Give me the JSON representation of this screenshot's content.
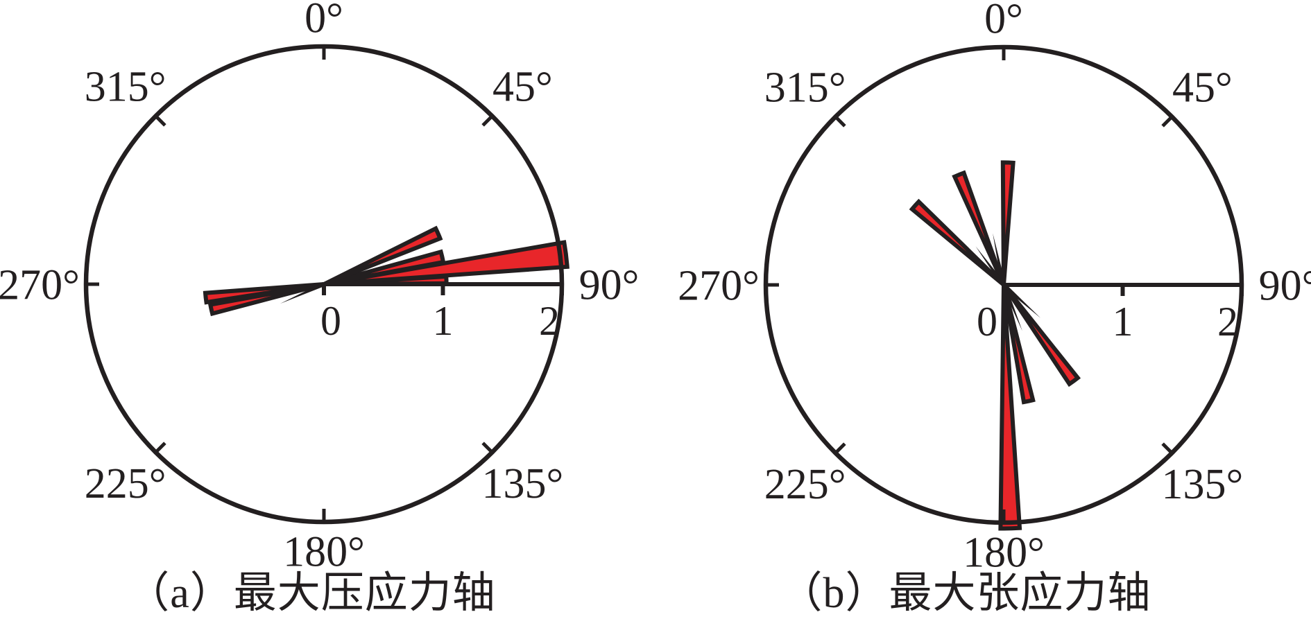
{
  "colors": {
    "petal_fill": "#e8262a",
    "line": "#231f20",
    "text": "#231f20",
    "background": "#ffffff"
  },
  "chart_data": [
    {
      "type": "rose",
      "caption": "（a）最大压应力轴",
      "orientation": "0-deg-up-clockwise",
      "rlim": [
        0,
        2
      ],
      "grid": "outer-circle-with-45deg-ticks",
      "angle_ticks": [
        {
          "angle_deg": 0,
          "label": "0°"
        },
        {
          "angle_deg": 45,
          "label": "45°"
        },
        {
          "angle_deg": 90,
          "label": "90°"
        },
        {
          "angle_deg": 135,
          "label": "135°"
        },
        {
          "angle_deg": 180,
          "label": "180°"
        },
        {
          "angle_deg": 225,
          "label": "225°"
        },
        {
          "angle_deg": 270,
          "label": "270°"
        },
        {
          "angle_deg": 315,
          "label": "315°"
        }
      ],
      "radius_ticks": [
        {
          "value": 0,
          "label": "0"
        },
        {
          "value": 1,
          "label": "1"
        },
        {
          "value": 2,
          "label": "2"
        }
      ],
      "petals": [
        {
          "angle_deg": 263.5,
          "length": 1.0,
          "width_deg": 4.5
        },
        {
          "angle_deg": 257.5,
          "length": 0.97,
          "width_deg": 4.5
        },
        {
          "angle_deg": 88,
          "length": 1.03,
          "width_deg": 3.2
        },
        {
          "angle_deg": 83,
          "length": 2.05,
          "width_deg": 5.8
        },
        {
          "angle_deg": 77,
          "length": 1.02,
          "width_deg": 5.0
        },
        {
          "angle_deg": 66,
          "length": 1.05,
          "width_deg": 5.0
        }
      ]
    },
    {
      "type": "rose",
      "caption": "（b）最大张应力轴",
      "orientation": "0-deg-up-clockwise",
      "rlim": [
        0,
        2
      ],
      "grid": "outer-circle-with-45deg-ticks",
      "angle_ticks": [
        {
          "angle_deg": 0,
          "label": "0°"
        },
        {
          "angle_deg": 45,
          "label": "45°"
        },
        {
          "angle_deg": 90,
          "label": "90°"
        },
        {
          "angle_deg": 135,
          "label": "135°"
        },
        {
          "angle_deg": 180,
          "label": "180°"
        },
        {
          "angle_deg": 225,
          "label": "225°"
        },
        {
          "angle_deg": 270,
          "label": "270°"
        },
        {
          "angle_deg": 315,
          "label": "315°"
        }
      ],
      "radius_ticks": [
        {
          "value": 0,
          "label": "0"
        },
        {
          "value": 1,
          "label": "1"
        },
        {
          "value": 2,
          "label": "2"
        }
      ],
      "petals": [
        {
          "angle_deg": 312,
          "length": 1.0,
          "width_deg": 4.8
        },
        {
          "angle_deg": 338,
          "length": 1.0,
          "width_deg": 4.8
        },
        {
          "angle_deg": 2,
          "length": 1.03,
          "width_deg": 4.8
        },
        {
          "angle_deg": 144,
          "length": 1.0,
          "width_deg": 5.0
        },
        {
          "angle_deg": 168,
          "length": 1.0,
          "width_deg": 4.5
        },
        {
          "angle_deg": 178.5,
          "length": 2.05,
          "width_deg": 4.5
        }
      ]
    }
  ]
}
